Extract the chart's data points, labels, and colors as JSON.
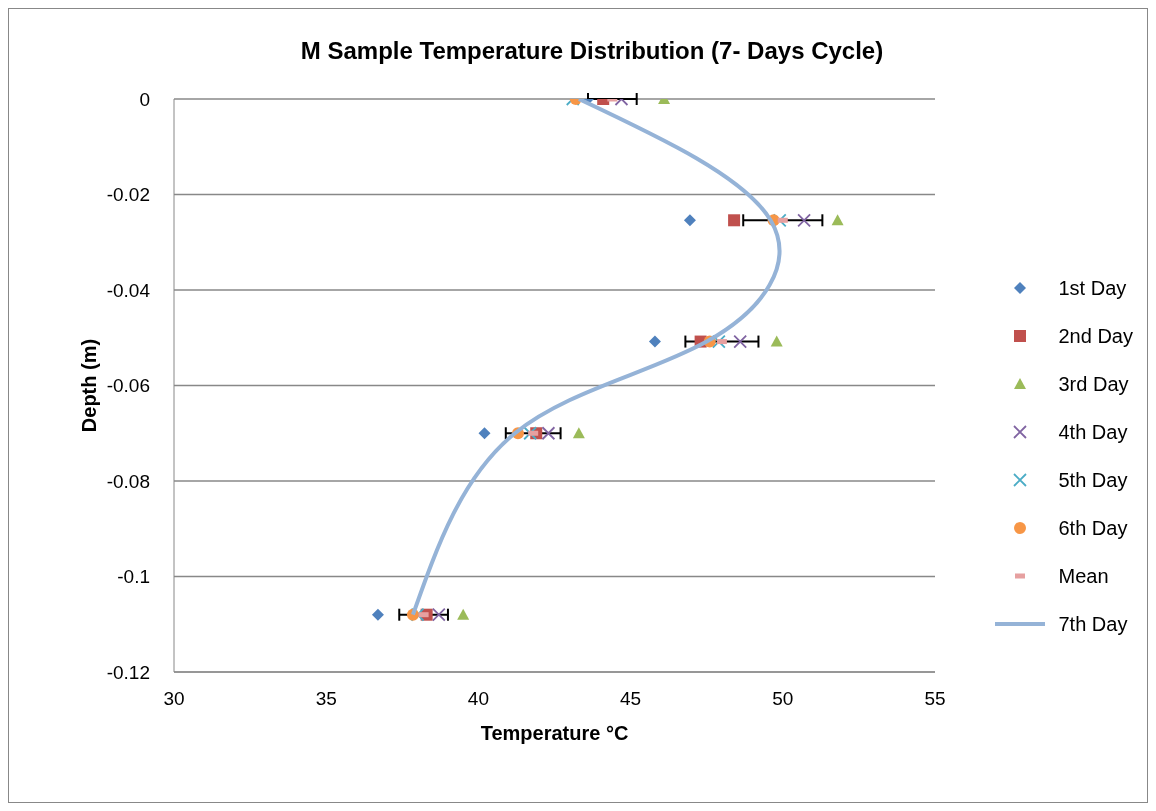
{
  "chart_data": {
    "type": "scatter",
    "title": "M Sample Temperature Distribution (7- Days Cycle)",
    "xlabel": "Temperature °C",
    "ylabel": "Depth (m)",
    "xlim": [
      30,
      55
    ],
    "xticks": [
      30,
      35,
      40,
      45,
      50,
      55
    ],
    "ylim": [
      -0.12,
      0
    ],
    "yticks": [
      -0.12,
      -0.1,
      -0.08,
      -0.06,
      -0.04,
      -0.02,
      0
    ],
    "grid": "y",
    "legend": "right",
    "series": [
      {
        "name": "1st Day",
        "color": "#4f81bd",
        "marker": "diamond",
        "x": [
          43.6,
          46.95,
          45.8,
          40.2,
          36.7
        ],
        "values": [
          0,
          -0.0254,
          -0.0508,
          -0.07,
          -0.108
        ]
      },
      {
        "name": "2nd Day",
        "color": "#c0504d",
        "marker": "square",
        "x": [
          44.1,
          48.4,
          47.3,
          41.9,
          38.3
        ],
        "values": [
          0,
          -0.0254,
          -0.0508,
          -0.07,
          -0.108
        ]
      },
      {
        "name": "3rd Day",
        "color": "#9bbb59",
        "marker": "triangle",
        "x": [
          46.1,
          51.8,
          49.8,
          43.3,
          39.5
        ],
        "values": [
          0,
          -0.0254,
          -0.0508,
          -0.07,
          -0.108
        ]
      },
      {
        "name": "4th Day",
        "color": "#8064a2",
        "marker": "cross",
        "x": [
          44.7,
          50.7,
          48.6,
          42.3,
          38.7
        ],
        "values": [
          0,
          -0.0254,
          -0.0508,
          -0.07,
          -0.108
        ]
      },
      {
        "name": "5th Day",
        "color": "#4bacc6",
        "marker": "cross",
        "x": [
          43.1,
          49.9,
          47.9,
          41.7,
          38.0
        ],
        "values": [
          0,
          -0.0254,
          -0.0508,
          -0.07,
          -0.108
        ]
      },
      {
        "name": "6th Day",
        "color": "#f79646",
        "marker": "circle",
        "x": [
          43.2,
          49.7,
          47.6,
          41.3,
          37.85
        ],
        "values": [
          0,
          -0.0254,
          -0.0508,
          -0.07,
          -0.108
        ]
      },
      {
        "name": "Mean",
        "color": "#e6a0a0",
        "x": [
          44.4,
          50.0,
          48.0,
          41.8,
          38.2
        ],
        "values": [
          0,
          -0.0254,
          -0.0508,
          -0.07,
          -0.108
        ],
        "xerrors": [
          0.8,
          1.3,
          1.2,
          0.9,
          0.8
        ]
      },
      {
        "name": "7th Day",
        "type": "line",
        "color": "#95b3d7",
        "line_style": "solid",
        "x": [
          43.3,
          49.6,
          47.5,
          41.2,
          37.85
        ],
        "values": [
          0,
          -0.0254,
          -0.0508,
          -0.07,
          -0.108
        ]
      }
    ]
  }
}
